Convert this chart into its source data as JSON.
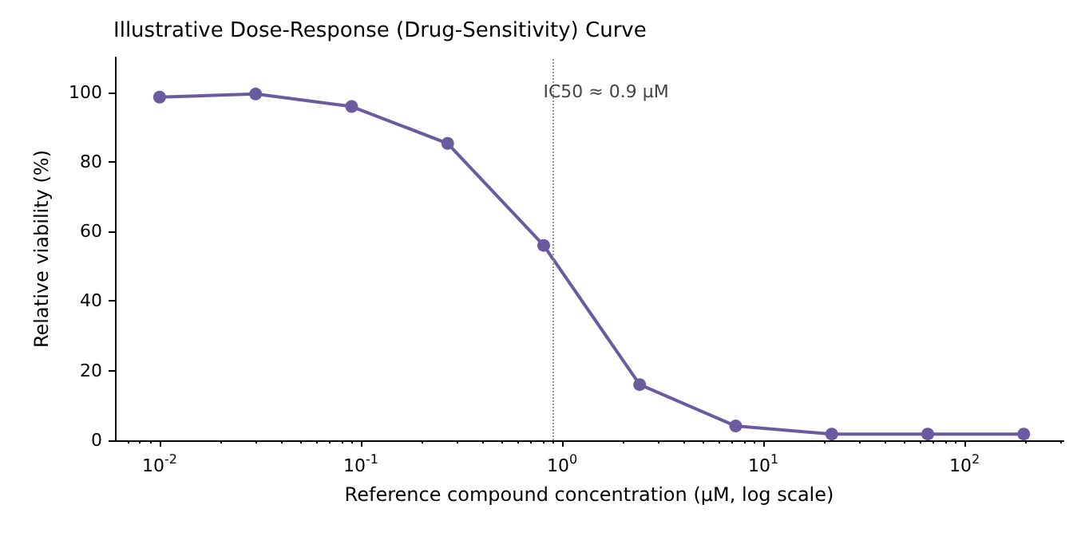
{
  "chart_data": {
    "type": "line",
    "title": "Illustrative Dose-Response (Drug-Sensitivity) Curve",
    "xlabel": "Reference compound concentration (µM, log scale)",
    "ylabel": "Relative viability (%)",
    "x": [
      0.01,
      0.03,
      0.09,
      0.27,
      0.81,
      2.43,
      7.29,
      21.87,
      65.61,
      196.83
    ],
    "series": [
      {
        "color": "#6a5a9e",
        "values": [
          98.6,
          99.5,
          95.9,
          85.3,
          56,
          16,
          4.1,
          1.8,
          1.8,
          1.8
        ]
      }
    ],
    "log": "x",
    "xlim": [
      0.006,
      310
    ],
    "xticks": [
      {
        "value": 0.01,
        "label": "10$^{-2}$"
      },
      {
        "value": 0.1,
        "label": "10$^{-1}$"
      },
      {
        "value": 1,
        "label": "10$^{0}$"
      },
      {
        "value": 10,
        "label": "10$^{1}$"
      },
      {
        "value": 100,
        "label": "10$^{2}$"
      }
    ],
    "ylim": [
      0,
      110
    ],
    "yticks": [
      0,
      20,
      40,
      60,
      80,
      100
    ],
    "grid": false,
    "marker": "circle",
    "line_style": "solid",
    "ref_lines": [
      {
        "axis": "x",
        "value": 0.9,
        "label": "IC50 ≈ 0.9 µM",
        "color": "#999999",
        "line_style": "dotted"
      }
    ]
  }
}
